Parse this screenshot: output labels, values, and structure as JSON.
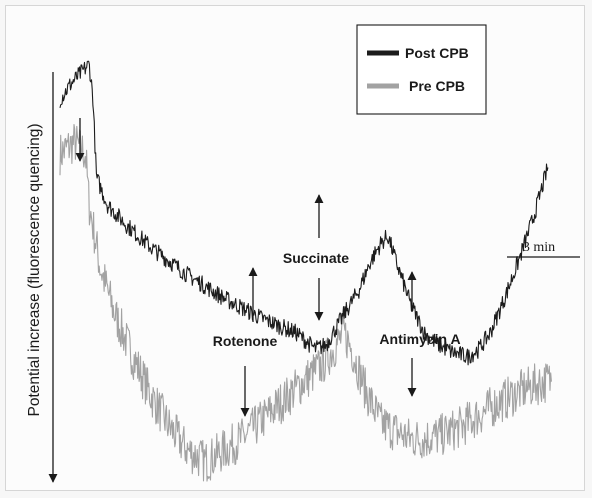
{
  "chart_data": {
    "type": "line",
    "title": "",
    "xlabel": "",
    "ylabel": "Potential increase (fluorescence quencing)",
    "y_axis_direction": "down",
    "time_scale_bar": "3 min",
    "legend": {
      "placement": "top-right",
      "entries": [
        {
          "name": "Post CPB",
          "color": "#1c1c1c"
        },
        {
          "name": "Pre CPB",
          "color": "#a2a2a2"
        }
      ]
    },
    "series": [
      {
        "name": "Post CPB",
        "color": "#1c1c1c",
        "noise": 2.2,
        "points": [
          [
            0,
            93
          ],
          [
            3,
            97
          ],
          [
            6,
            100
          ],
          [
            8,
            102
          ],
          [
            9,
            94
          ],
          [
            10,
            73
          ],
          [
            13,
            66
          ],
          [
            18,
            61
          ],
          [
            25,
            55
          ],
          [
            35,
            48
          ],
          [
            45,
            42
          ],
          [
            55,
            37
          ],
          [
            65,
            33
          ],
          [
            70,
            29
          ],
          [
            73,
            30
          ],
          [
            78,
            38
          ],
          [
            82,
            44
          ],
          [
            85,
            51
          ],
          [
            88,
            56
          ],
          [
            90,
            58
          ],
          [
            92,
            52
          ],
          [
            96,
            41
          ],
          [
            100,
            33
          ],
          [
            104,
            30
          ],
          [
            108,
            28
          ],
          [
            112,
            27
          ],
          [
            115,
            29
          ],
          [
            118,
            33
          ],
          [
            122,
            42
          ],
          [
            126,
            52
          ],
          [
            130,
            63
          ],
          [
            134,
            76
          ]
        ]
      },
      {
        "name": "Pre CPB",
        "color": "#a2a2a2",
        "noise": 5.5,
        "points": [
          [
            0,
            79
          ],
          [
            4,
            82
          ],
          [
            7,
            79
          ],
          [
            8,
            66
          ],
          [
            11,
            50
          ],
          [
            15,
            38
          ],
          [
            20,
            27
          ],
          [
            25,
            17
          ],
          [
            30,
            9
          ],
          [
            35,
            3
          ],
          [
            40,
            0
          ],
          [
            45,
            3
          ],
          [
            50,
            6
          ],
          [
            58,
            13
          ],
          [
            65,
            19
          ],
          [
            72,
            25
          ],
          [
            78,
            33
          ],
          [
            80,
            29
          ],
          [
            84,
            18
          ],
          [
            88,
            10
          ],
          [
            92,
            8
          ],
          [
            96,
            6
          ],
          [
            100,
            6
          ],
          [
            105,
            7
          ],
          [
            110,
            9
          ],
          [
            115,
            12
          ],
          [
            120,
            15
          ],
          [
            126,
            18
          ],
          [
            131,
            20
          ],
          [
            135,
            21
          ]
        ]
      }
    ],
    "annotations": [
      {
        "label": "Rotenone",
        "x": 70
      },
      {
        "label": "Succinate",
        "x": 90
      },
      {
        "label": "Antimycin A",
        "x": 112
      }
    ]
  }
}
